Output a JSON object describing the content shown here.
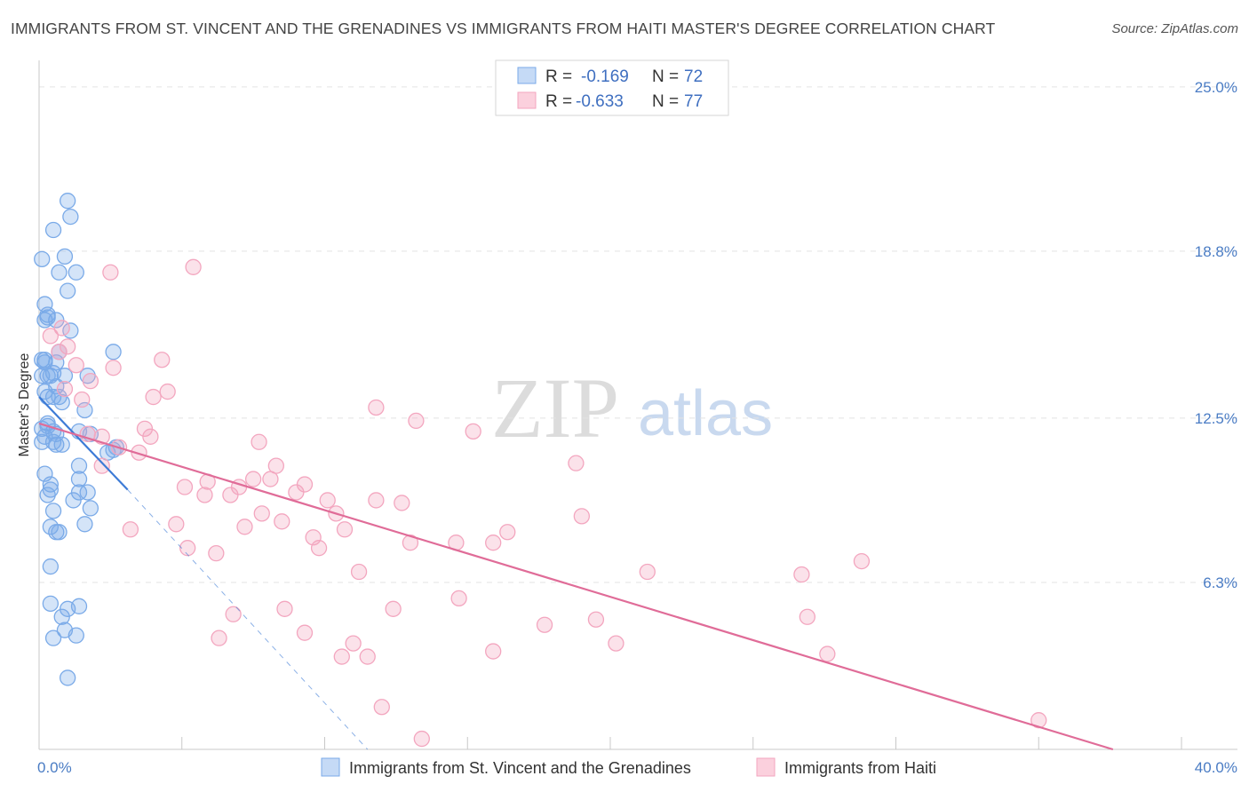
{
  "header": {
    "title": "IMMIGRANTS FROM ST. VINCENT AND THE GRENADINES VS IMMIGRANTS FROM HAITI MASTER'S DEGREE CORRELATION CHART",
    "source": "Source: ZipAtlas.com"
  },
  "watermark": {
    "zip": "ZIP",
    "atlas": "atlas"
  },
  "chart_data": {
    "type": "scatter",
    "ylabel": "Master's Degree",
    "xlim": [
      0,
      40
    ],
    "ylim": [
      0,
      26
    ],
    "x_tick_labels": [
      {
        "value": 0,
        "label": "0.0%"
      },
      {
        "value": 40,
        "label": "40.0%"
      }
    ],
    "y_tick_labels": [
      {
        "value": 6.3,
        "label": "6.3%"
      },
      {
        "value": 12.5,
        "label": "12.5%"
      },
      {
        "value": 18.8,
        "label": "18.8%"
      },
      {
        "value": 25.0,
        "label": "25.0%"
      }
    ],
    "legend": {
      "placement": "top-center",
      "entries": [
        {
          "r_label": "R = ",
          "r_value": "-0.169",
          "n_label": "N = ",
          "n_value": "72"
        },
        {
          "r_label": "R = ",
          "r_value": "-0.633",
          "n_label": "N = ",
          "n_value": "77"
        }
      ]
    },
    "series": [
      {
        "name": "Immigrants from St. Vincent and the Grenadines",
        "color": "#7aaae8",
        "line_color": "#3d7bd6",
        "trend_solid": [
          [
            0.0,
            13.3
          ],
          [
            3.1,
            9.8
          ]
        ],
        "trend_dashed": [
          [
            3.1,
            9.8
          ],
          [
            11.5,
            0.0
          ]
        ],
        "points": [
          [
            1.0,
            20.7
          ],
          [
            1.1,
            20.1
          ],
          [
            0.5,
            19.6
          ],
          [
            0.1,
            18.5
          ],
          [
            0.9,
            18.6
          ],
          [
            0.7,
            18.0
          ],
          [
            1.3,
            18.0
          ],
          [
            1.0,
            17.3
          ],
          [
            0.2,
            16.8
          ],
          [
            0.3,
            16.4
          ],
          [
            0.2,
            16.2
          ],
          [
            0.6,
            16.2
          ],
          [
            0.3,
            16.3
          ],
          [
            1.1,
            15.8
          ],
          [
            0.7,
            15.0
          ],
          [
            2.6,
            15.0
          ],
          [
            0.1,
            14.7
          ],
          [
            0.2,
            14.6
          ],
          [
            0.6,
            14.6
          ],
          [
            0.1,
            14.1
          ],
          [
            0.3,
            14.1
          ],
          [
            0.5,
            14.2
          ],
          [
            0.9,
            14.1
          ],
          [
            1.7,
            14.1
          ],
          [
            0.6,
            13.7
          ],
          [
            0.2,
            13.5
          ],
          [
            0.3,
            13.3
          ],
          [
            0.5,
            13.3
          ],
          [
            0.7,
            13.3
          ],
          [
            0.8,
            13.1
          ],
          [
            1.6,
            12.8
          ],
          [
            0.3,
            12.3
          ],
          [
            0.5,
            12.0
          ],
          [
            0.1,
            12.1
          ],
          [
            0.2,
            11.8
          ],
          [
            1.4,
            12.0
          ],
          [
            0.6,
            11.9
          ],
          [
            1.8,
            11.9
          ],
          [
            0.5,
            11.6
          ],
          [
            0.6,
            11.5
          ],
          [
            0.1,
            11.6
          ],
          [
            2.6,
            11.3
          ],
          [
            2.7,
            11.4
          ],
          [
            1.4,
            10.7
          ],
          [
            0.2,
            10.4
          ],
          [
            1.4,
            10.2
          ],
          [
            0.4,
            10.0
          ],
          [
            0.3,
            9.6
          ],
          [
            0.4,
            9.8
          ],
          [
            1.4,
            9.7
          ],
          [
            1.7,
            9.7
          ],
          [
            1.2,
            9.4
          ],
          [
            1.8,
            9.1
          ],
          [
            0.5,
            9.0
          ],
          [
            0.4,
            8.4
          ],
          [
            1.6,
            8.5
          ],
          [
            0.6,
            8.2
          ],
          [
            0.7,
            8.2
          ],
          [
            0.4,
            6.9
          ],
          [
            0.4,
            5.5
          ],
          [
            1.0,
            5.3
          ],
          [
            1.4,
            5.4
          ],
          [
            0.8,
            5.0
          ],
          [
            0.9,
            4.5
          ],
          [
            0.5,
            4.2
          ],
          [
            1.3,
            4.3
          ],
          [
            1.0,
            2.7
          ],
          [
            0.2,
            14.7
          ],
          [
            0.4,
            14.1
          ],
          [
            0.8,
            11.5
          ],
          [
            2.4,
            11.2
          ],
          [
            0.3,
            12.2
          ]
        ]
      },
      {
        "name": "Immigrants from Haiti",
        "color": "#f3a6bf",
        "line_color": "#e06c98",
        "trend_solid": [
          [
            0.0,
            12.3
          ],
          [
            37.6,
            0.0
          ]
        ],
        "points": [
          [
            0.4,
            15.6
          ],
          [
            0.8,
            15.9
          ],
          [
            1.0,
            15.2
          ],
          [
            0.7,
            15.0
          ],
          [
            1.3,
            14.5
          ],
          [
            2.6,
            14.4
          ],
          [
            4.3,
            14.7
          ],
          [
            1.8,
            13.9
          ],
          [
            0.9,
            13.6
          ],
          [
            4.5,
            13.5
          ],
          [
            4.0,
            13.3
          ],
          [
            1.5,
            13.2
          ],
          [
            2.5,
            18.0
          ],
          [
            5.4,
            18.2
          ],
          [
            11.8,
            12.9
          ],
          [
            13.2,
            12.4
          ],
          [
            15.2,
            12.0
          ],
          [
            3.7,
            12.1
          ],
          [
            1.7,
            11.9
          ],
          [
            2.2,
            11.8
          ],
          [
            3.9,
            11.8
          ],
          [
            7.7,
            11.6
          ],
          [
            3.5,
            11.2
          ],
          [
            2.8,
            11.4
          ],
          [
            8.3,
            10.7
          ],
          [
            2.2,
            10.7
          ],
          [
            5.9,
            10.1
          ],
          [
            7.5,
            10.2
          ],
          [
            8.1,
            10.2
          ],
          [
            18.8,
            10.8
          ],
          [
            5.1,
            9.9
          ],
          [
            7.0,
            9.9
          ],
          [
            9.3,
            10.0
          ],
          [
            5.8,
            9.6
          ],
          [
            6.7,
            9.6
          ],
          [
            9.0,
            9.7
          ],
          [
            10.1,
            9.4
          ],
          [
            11.8,
            9.4
          ],
          [
            12.7,
            9.3
          ],
          [
            7.8,
            8.9
          ],
          [
            10.4,
            8.9
          ],
          [
            19.0,
            8.8
          ],
          [
            4.8,
            8.5
          ],
          [
            7.2,
            8.4
          ],
          [
            8.5,
            8.6
          ],
          [
            3.2,
            8.3
          ],
          [
            10.7,
            8.3
          ],
          [
            16.4,
            8.2
          ],
          [
            9.6,
            8.0
          ],
          [
            13.0,
            7.8
          ],
          [
            5.2,
            7.6
          ],
          [
            9.8,
            7.6
          ],
          [
            14.6,
            7.8
          ],
          [
            15.9,
            7.8
          ],
          [
            6.2,
            7.4
          ],
          [
            28.8,
            7.1
          ],
          [
            11.2,
            6.7
          ],
          [
            21.3,
            6.7
          ],
          [
            26.7,
            6.6
          ],
          [
            14.7,
            5.7
          ],
          [
            8.6,
            5.3
          ],
          [
            12.4,
            5.3
          ],
          [
            6.8,
            5.1
          ],
          [
            19.5,
            4.9
          ],
          [
            26.9,
            5.0
          ],
          [
            17.7,
            4.7
          ],
          [
            9.3,
            4.4
          ],
          [
            6.3,
            4.2
          ],
          [
            20.2,
            4.0
          ],
          [
            11.0,
            4.0
          ],
          [
            15.9,
            3.7
          ],
          [
            27.6,
            3.6
          ],
          [
            10.6,
            3.5
          ],
          [
            11.5,
            3.5
          ],
          [
            12.0,
            1.6
          ],
          [
            13.4,
            0.4
          ],
          [
            35.0,
            1.1
          ]
        ]
      }
    ]
  }
}
